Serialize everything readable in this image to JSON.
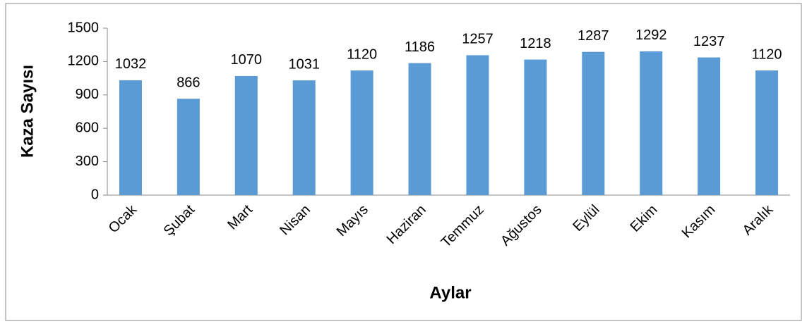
{
  "chart_data": {
    "type": "bar",
    "x_label": "Aylar",
    "y_label": "Kaza Sayısı",
    "categories": [
      "Ocak",
      "Şubat",
      "Mart",
      "Nisan",
      "Mayıs",
      "Haziran",
      "Temmuz",
      "Ağustos",
      "Eylül",
      "Ekim",
      "Kasım",
      "Aralık"
    ],
    "values": [
      1032,
      866,
      1070,
      1031,
      1120,
      1186,
      1257,
      1218,
      1287,
      1292,
      1237,
      1120
    ],
    "color": "#5b9bd5",
    "ylim": [
      0,
      1500
    ],
    "yticks": [
      0,
      300,
      600,
      900,
      1200,
      1500
    ],
    "grid": false
  }
}
